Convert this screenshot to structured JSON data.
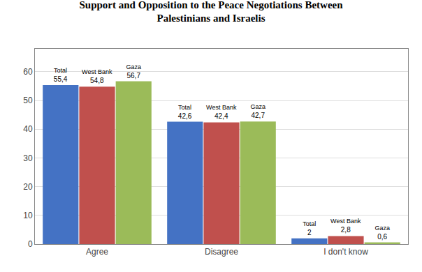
{
  "chart_data": {
    "type": "bar",
    "title": "Support and Opposition to the Peace Negotiations Between\nPalestinians and Israelis",
    "categories": [
      "Agree",
      "Disagree",
      "I don't know"
    ],
    "series": [
      {
        "name": "Total",
        "color": "#4472c4",
        "values": [
          55.4,
          42.6,
          2.0
        ],
        "value_labels": [
          "55,4",
          "42,6",
          "2"
        ]
      },
      {
        "name": "West Bank",
        "color": "#c0504d",
        "values": [
          54.8,
          42.4,
          2.8
        ],
        "value_labels": [
          "54,8",
          "42,4",
          "2,8"
        ]
      },
      {
        "name": "Gaza",
        "color": "#9bbb59",
        "values": [
          56.7,
          42.7,
          0.6
        ],
        "value_labels": [
          "56,7",
          "42,7",
          "0,6"
        ]
      }
    ],
    "ylim": [
      0,
      68
    ],
    "yticks": [
      0,
      10,
      20,
      30,
      40,
      50,
      60
    ],
    "grid": true,
    "data_labels": true
  }
}
